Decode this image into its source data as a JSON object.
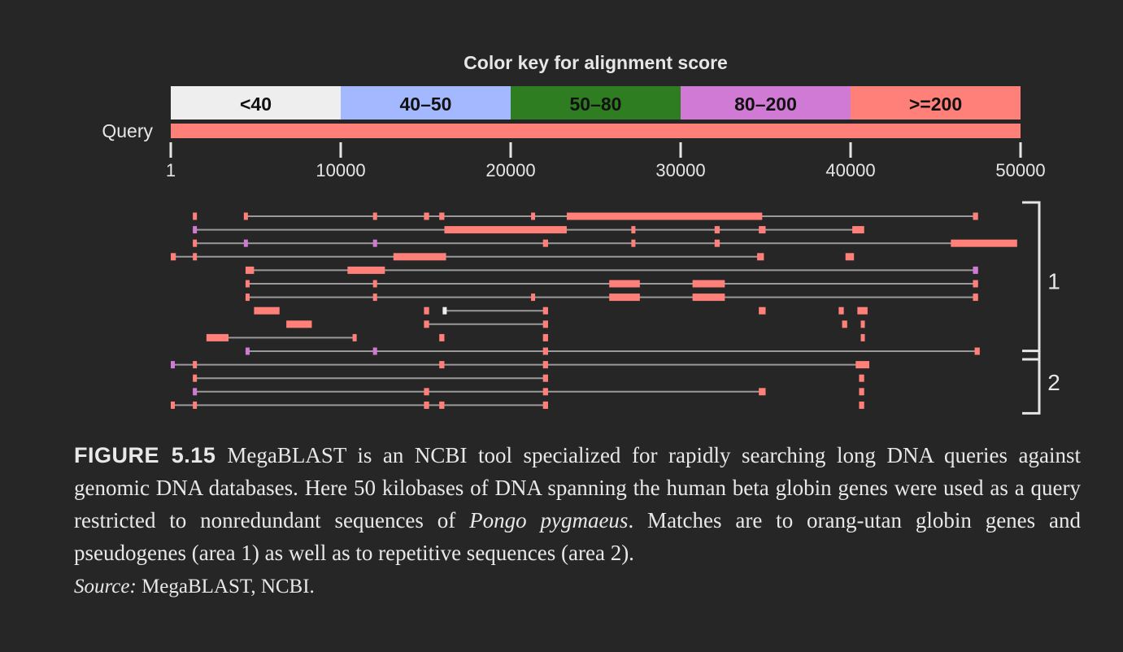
{
  "chart_data": {
    "type": "alignment-map",
    "title": "Color key for alignment score",
    "query_label": "Query",
    "x_range": [
      1,
      50000
    ],
    "x_ticks": [
      1,
      10000,
      20000,
      30000,
      40000,
      50000
    ],
    "legend": [
      {
        "label": "<40",
        "color": "#eeeeee"
      },
      {
        "label": "40–50",
        "color": "#a3b8ff"
      },
      {
        "label": "50–80",
        "color": "#2f7d21"
      },
      {
        "label": "80–200",
        "color": "#d07ad6"
      },
      {
        "label": ">=200",
        "color": "#ff7f79"
      }
    ],
    "rows": [
      {
        "line": [
          4400,
          47300
        ],
        "segs": [
          [
            1300,
            1500,
            4
          ],
          [
            4300,
            4500,
            4
          ],
          [
            11900,
            12100,
            4
          ],
          [
            14900,
            15200,
            4
          ],
          [
            15800,
            16100,
            4
          ],
          [
            21200,
            21400,
            4
          ],
          [
            23300,
            34800,
            4
          ],
          [
            47200,
            47500,
            4
          ]
        ]
      },
      {
        "line": [
          1300,
          40500
        ],
        "segs": [
          [
            1300,
            1500,
            3
          ],
          [
            16100,
            23300,
            4
          ],
          [
            27100,
            27300,
            4
          ],
          [
            32000,
            32300,
            4
          ],
          [
            34600,
            35000,
            4
          ],
          [
            40100,
            40800,
            4
          ]
        ]
      },
      {
        "line": [
          1300,
          47500
        ],
        "segs": [
          [
            1300,
            1500,
            4
          ],
          [
            4300,
            4500,
            3
          ],
          [
            11900,
            12100,
            3
          ],
          [
            21900,
            22200,
            4
          ],
          [
            27100,
            27300,
            4
          ],
          [
            32000,
            32300,
            4
          ],
          [
            45900,
            49800,
            4
          ]
        ]
      },
      {
        "line": [
          1,
          34500
        ],
        "segs": [
          [
            1,
            300,
            4
          ],
          [
            1300,
            1500,
            4
          ],
          [
            13100,
            16200,
            4
          ],
          [
            34500,
            34900,
            4
          ],
          [
            39700,
            40200,
            4
          ]
        ]
      },
      {
        "line": [
          4400,
          47500
        ],
        "segs": [
          [
            4400,
            4900,
            4
          ],
          [
            10400,
            12600,
            4
          ],
          [
            47200,
            47500,
            3
          ]
        ]
      },
      {
        "line": [
          4400,
          47500
        ],
        "segs": [
          [
            4400,
            4600,
            4
          ],
          [
            11900,
            12100,
            4
          ],
          [
            25800,
            27600,
            4
          ],
          [
            30700,
            32600,
            4
          ],
          [
            47200,
            47500,
            4
          ]
        ]
      },
      {
        "line": [
          4400,
          47500
        ],
        "segs": [
          [
            4400,
            4600,
            4
          ],
          [
            11900,
            12100,
            4
          ],
          [
            21200,
            21400,
            4
          ],
          [
            25800,
            27600,
            4
          ],
          [
            30700,
            32600,
            4
          ],
          [
            47200,
            47500,
            4
          ]
        ]
      },
      {
        "line": [
          16000,
          22000
        ],
        "segs": [
          [
            4900,
            6400,
            4
          ],
          [
            14900,
            15200,
            4
          ],
          [
            16000,
            16100,
            0
          ],
          [
            21900,
            22200,
            4
          ],
          [
            34600,
            35000,
            4
          ],
          [
            39300,
            39600,
            4
          ],
          [
            40400,
            41000,
            4
          ]
        ]
      },
      {
        "line": [
          14900,
          22000
        ],
        "segs": [
          [
            6800,
            8300,
            4
          ],
          [
            14900,
            15200,
            4
          ],
          [
            21900,
            22200,
            4
          ],
          [
            39500,
            39800,
            4
          ],
          [
            40600,
            40800,
            4
          ]
        ]
      },
      {
        "line": [
          3400,
          10800
        ],
        "segs": [
          [
            2100,
            3400,
            4
          ],
          [
            10700,
            10900,
            4
          ],
          [
            15800,
            16100,
            4
          ],
          [
            21900,
            22200,
            4
          ],
          [
            40600,
            40800,
            4
          ]
        ]
      },
      {
        "line": [
          4400,
          47500
        ],
        "segs": [
          [
            4400,
            4500,
            3
          ],
          [
            11900,
            12100,
            3
          ],
          [
            21900,
            22200,
            4
          ],
          [
            47300,
            47600,
            4
          ]
        ]
      },
      {
        "line": [
          1,
          40700
        ],
        "segs": [
          [
            1,
            100,
            3
          ],
          [
            1300,
            1500,
            4
          ],
          [
            15800,
            16100,
            4
          ],
          [
            21900,
            22200,
            4
          ],
          [
            40300,
            41100,
            4
          ]
        ]
      },
      {
        "line": [
          1300,
          22000
        ],
        "segs": [
          [
            1300,
            1500,
            4
          ],
          [
            21900,
            22200,
            4
          ],
          [
            40500,
            40800,
            4
          ]
        ]
      },
      {
        "line": [
          1300,
          34700
        ],
        "segs": [
          [
            1300,
            1500,
            3
          ],
          [
            14900,
            15200,
            4
          ],
          [
            21900,
            22200,
            4
          ],
          [
            34600,
            35000,
            4
          ],
          [
            40500,
            40800,
            4
          ]
        ]
      },
      {
        "line": [
          1,
          22000
        ],
        "segs": [
          [
            1,
            100,
            4
          ],
          [
            1300,
            1500,
            4
          ],
          [
            14900,
            15200,
            4
          ],
          [
            15800,
            16100,
            4
          ],
          [
            21900,
            22200,
            4
          ],
          [
            40500,
            40800,
            4
          ]
        ]
      }
    ],
    "areas": [
      {
        "label": "1",
        "rows": [
          0,
          10
        ]
      },
      {
        "label": "2",
        "rows": [
          11,
          14
        ]
      }
    ]
  },
  "caption": {
    "figure_label": "FIGURE 5.15",
    "text_part1": "MegaBLAST is an NCBI tool specialized for rapidly searching long DNA queries against genomic DNA databases. Here 50 kilobases of DNA spanning the human beta globin genes were used as a query restricted to nonredundant sequences of ",
    "species": "Pongo pygmaeus",
    "text_part2": ". Matches are to orang-utan globin genes and pseudogenes (area 1) as well as to repetitive sequences (area 2)."
  },
  "source": {
    "label": "Source:",
    "text": " MegaBLAST, NCBI."
  }
}
